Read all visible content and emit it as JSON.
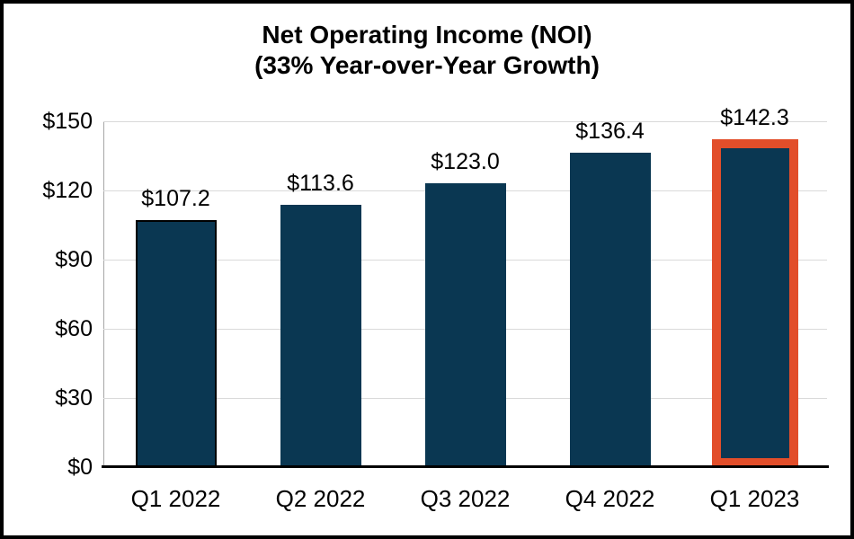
{
  "chart_data": {
    "type": "bar",
    "title": "Net Operating Income (NOI)",
    "subtitle": "(33% Year-over-Year Growth)",
    "categories": [
      "Q1 2022",
      "Q2 2022",
      "Q3 2022",
      "Q4 2022",
      "Q1 2023"
    ],
    "values": [
      107.2,
      113.6,
      123.0,
      136.4,
      142.3
    ],
    "data_labels": [
      "$107.2",
      "$113.6",
      "$123.0",
      "$136.4",
      "$142.3"
    ],
    "y_ticks": [
      "$0",
      "$30",
      "$60",
      "$90",
      "$120",
      "$150"
    ],
    "y_tick_values": [
      0,
      30,
      60,
      90,
      120,
      150
    ],
    "ylim": [
      0,
      150
    ],
    "grid_on": true,
    "legend": "none",
    "colors": {
      "bar_fill": "#0A3752",
      "highlight_border": "#E24E2A",
      "outline_border": "#000000",
      "gridline": "#D9D9D9",
      "plot_left_border": "#A6A6A6",
      "axis_line": "#000000",
      "frame_border": "#000000",
      "text": "#000000",
      "background": "#FFFFFF"
    },
    "highlighted_bar_index": 4,
    "outlined_bar_index": 0
  }
}
